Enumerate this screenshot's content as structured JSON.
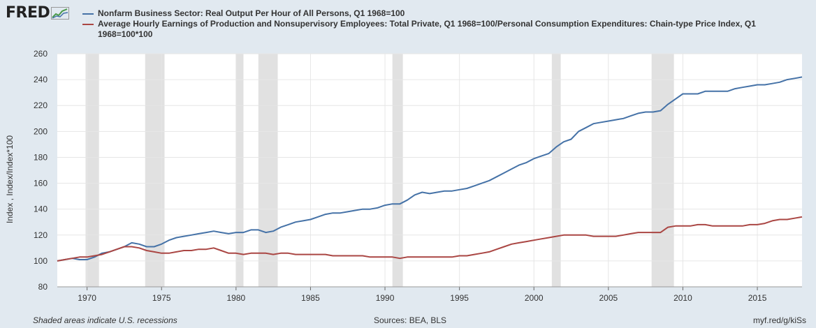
{
  "header": {
    "logo_text": "FRED",
    "logo_icon": "chart-line-icon"
  },
  "chart_data": {
    "type": "line",
    "title": "",
    "xlabel": "",
    "ylabel": "Index , Index/Index*100",
    "xlim": [
      1968.0,
      2018.0
    ],
    "ylim": [
      80,
      260
    ],
    "xticks": [
      1970,
      1975,
      1980,
      1985,
      1990,
      1995,
      2000,
      2005,
      2010,
      2015
    ],
    "yticks": [
      80,
      100,
      120,
      140,
      160,
      180,
      200,
      220,
      240,
      260
    ],
    "grid": true,
    "recessions": [
      [
        1969.9,
        1970.8
      ],
      [
        1973.9,
        1975.2
      ],
      [
        1980.0,
        1980.5
      ],
      [
        1981.5,
        1982.8
      ],
      [
        1990.5,
        1991.2
      ],
      [
        2001.2,
        2001.8
      ],
      [
        2007.9,
        2009.4
      ]
    ],
    "series": [
      {
        "name": "Nonfarm Business Sector: Real Output Per Hour of All Persons, Q1 1968=100",
        "color": "#4572a7",
        "x": [
          1968,
          1968.5,
          1969,
          1969.5,
          1970,
          1970.5,
          1971,
          1971.5,
          1972,
          1972.5,
          1973,
          1973.5,
          1974,
          1974.5,
          1975,
          1975.5,
          1976,
          1976.5,
          1977,
          1977.5,
          1978,
          1978.5,
          1979,
          1979.5,
          1980,
          1980.5,
          1981,
          1981.5,
          1982,
          1982.5,
          1983,
          1983.5,
          1984,
          1984.5,
          1985,
          1985.5,
          1986,
          1986.5,
          1987,
          1987.5,
          1988,
          1988.5,
          1989,
          1989.5,
          1990,
          1990.5,
          1991,
          1991.5,
          1992,
          1992.5,
          1993,
          1993.5,
          1994,
          1994.5,
          1995,
          1995.5,
          1996,
          1996.5,
          1997,
          1997.5,
          1998,
          1998.5,
          1999,
          1999.5,
          2000,
          2000.5,
          2001,
          2001.5,
          2002,
          2002.5,
          2003,
          2003.5,
          2004,
          2004.5,
          2005,
          2005.5,
          2006,
          2006.5,
          2007,
          2007.5,
          2008,
          2008.5,
          2009,
          2009.5,
          2010,
          2010.5,
          2011,
          2011.5,
          2012,
          2012.5,
          2013,
          2013.5,
          2014,
          2014.5,
          2015,
          2015.5,
          2016,
          2016.5,
          2017,
          2017.5,
          2018
        ],
        "values": [
          100,
          101,
          102,
          101,
          101,
          103,
          106,
          107,
          109,
          111,
          114,
          113,
          111,
          111,
          113,
          116,
          118,
          119,
          120,
          121,
          122,
          123,
          122,
          121,
          122,
          122,
          124,
          124,
          122,
          123,
          126,
          128,
          130,
          131,
          132,
          134,
          136,
          137,
          137,
          138,
          139,
          140,
          140,
          141,
          143,
          144,
          144,
          147,
          151,
          153,
          152,
          153,
          154,
          154,
          155,
          156,
          158,
          160,
          162,
          165,
          168,
          171,
          174,
          176,
          179,
          181,
          183,
          188,
          192,
          194,
          200,
          203,
          206,
          207,
          208,
          209,
          210,
          212,
          214,
          215,
          215,
          216,
          221,
          225,
          229,
          229,
          229,
          231,
          231,
          231,
          231,
          233,
          234,
          235,
          236,
          236,
          237,
          238,
          240,
          241,
          242
        ]
      },
      {
        "name": "Average Hourly Earnings of Production and Nonsupervisory Employees: Total Private, Q1 1968=100/Personal Consumption Expenditures: Chain-type Price Index, Q1 1968=100*100",
        "color": "#aa4643",
        "x": [
          1968,
          1968.5,
          1969,
          1969.5,
          1970,
          1970.5,
          1971,
          1971.5,
          1972,
          1972.5,
          1973,
          1973.5,
          1974,
          1974.5,
          1975,
          1975.5,
          1976,
          1976.5,
          1977,
          1977.5,
          1978,
          1978.5,
          1979,
          1979.5,
          1980,
          1980.5,
          1981,
          1981.5,
          1982,
          1982.5,
          1983,
          1983.5,
          1984,
          1984.5,
          1985,
          1985.5,
          1986,
          1986.5,
          1987,
          1987.5,
          1988,
          1988.5,
          1989,
          1989.5,
          1990,
          1990.5,
          1991,
          1991.5,
          1992,
          1992.5,
          1993,
          1993.5,
          1994,
          1994.5,
          1995,
          1995.5,
          1996,
          1996.5,
          1997,
          1997.5,
          1998,
          1998.5,
          1999,
          1999.5,
          2000,
          2000.5,
          2001,
          2001.5,
          2002,
          2002.5,
          2003,
          2003.5,
          2004,
          2004.5,
          2005,
          2005.5,
          2006,
          2006.5,
          2007,
          2007.5,
          2008,
          2008.5,
          2009,
          2009.5,
          2010,
          2010.5,
          2011,
          2011.5,
          2012,
          2012.5,
          2013,
          2013.5,
          2014,
          2014.5,
          2015,
          2015.5,
          2016,
          2016.5,
          2017,
          2017.5,
          2018
        ],
        "values": [
          100,
          101,
          102,
          103,
          103,
          104,
          105,
          107,
          109,
          111,
          111,
          110,
          108,
          107,
          106,
          106,
          107,
          108,
          108,
          109,
          109,
          110,
          108,
          106,
          106,
          105,
          106,
          106,
          106,
          105,
          106,
          106,
          105,
          105,
          105,
          105,
          105,
          104,
          104,
          104,
          104,
          104,
          103,
          103,
          103,
          103,
          102,
          103,
          103,
          103,
          103,
          103,
          103,
          103,
          104,
          104,
          105,
          106,
          107,
          109,
          111,
          113,
          114,
          115,
          116,
          117,
          118,
          119,
          120,
          120,
          120,
          120,
          119,
          119,
          119,
          119,
          120,
          121,
          122,
          122,
          122,
          122,
          126,
          127,
          127,
          127,
          128,
          128,
          127,
          127,
          127,
          127,
          127,
          128,
          128,
          129,
          131,
          132,
          132,
          133,
          134
        ]
      }
    ]
  },
  "footer": {
    "note": "Shaded areas indicate U.S. recessions",
    "sources": "Sources: BEA, BLS",
    "link": "myf.red/g/kiSs"
  }
}
